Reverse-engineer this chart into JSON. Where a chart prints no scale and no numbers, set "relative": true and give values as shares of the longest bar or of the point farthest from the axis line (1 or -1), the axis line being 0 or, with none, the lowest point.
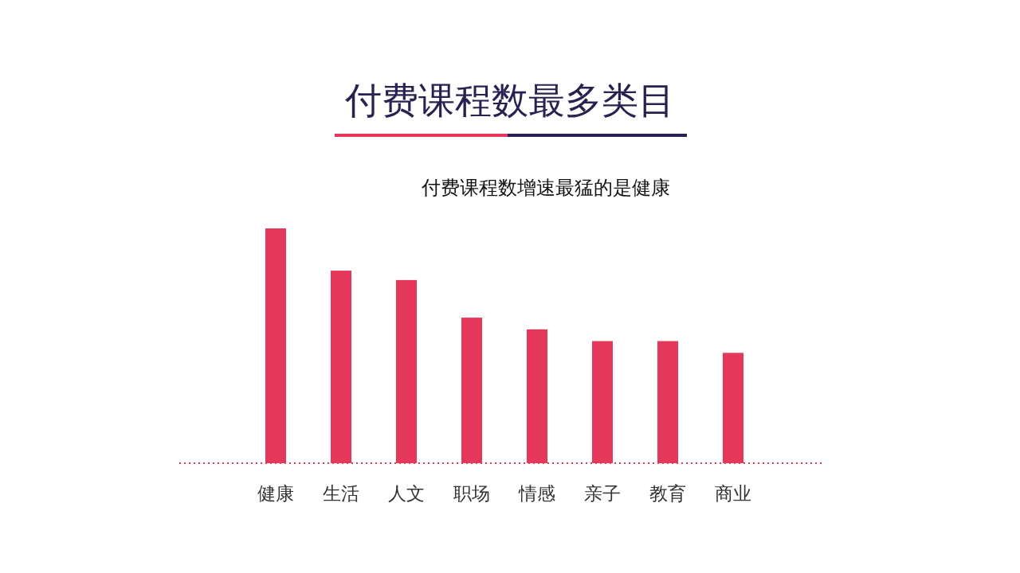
{
  "chart_data": {
    "type": "bar",
    "title": "付费课程数最多类目",
    "subtitle": "付费课程数增速最猛的是健康",
    "relative": true,
    "categories": [
      "健康",
      "生活",
      "人文",
      "职场",
      "情感",
      "亲子",
      "教育",
      "商业"
    ],
    "values": [
      1,
      0.82,
      0.78,
      0.62,
      0.57,
      0.52,
      0.52,
      0.47
    ],
    "color": "#e5375a"
  }
}
